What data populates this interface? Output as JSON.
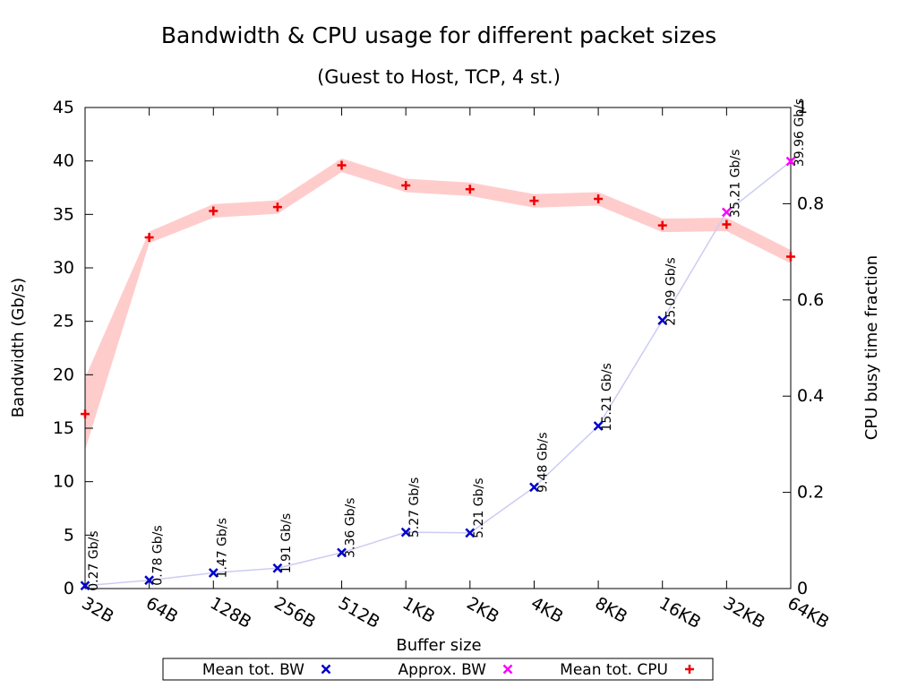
{
  "chart_data": {
    "type": "line",
    "title": "Bandwidth & CPU usage for different packet sizes",
    "subtitle": "(Guest to Host, TCP, 4 st.)",
    "xlabel": "Buffer size",
    "ylabel": "Bandwidth (Gb/s)",
    "y2label": "CPU busy time fraction",
    "categories": [
      "32B",
      "64B",
      "128B",
      "256B",
      "512B",
      "1KB",
      "2KB",
      "4KB",
      "8KB",
      "16KB",
      "32KB",
      "64KB"
    ],
    "ylim": [
      0,
      45
    ],
    "yticks": [
      0,
      5,
      10,
      15,
      20,
      25,
      30,
      35,
      40,
      45
    ],
    "y2lim": [
      0,
      1
    ],
    "y2ticks": [
      "0",
      "0.2",
      "0.4",
      "0.6",
      "0.8",
      "1"
    ],
    "grid": false,
    "legend_position": "bottom",
    "series": [
      {
        "name": "Mean tot. BW",
        "axis": "left",
        "color": "#0000cc",
        "marker": "x",
        "values": [
          0.27,
          0.78,
          1.47,
          1.91,
          3.36,
          5.27,
          5.21,
          9.48,
          15.21,
          25.09,
          null,
          null
        ],
        "labels": [
          "0.27 Gb/s",
          "0.78 Gb/s",
          "1.47 Gb/s",
          "1.91 Gb/s",
          "3.36 Gb/s",
          "5.27 Gb/s",
          "5.21 Gb/s",
          "9.48 Gb/s",
          "15.21 Gb/s",
          "25.09 Gb/s",
          "",
          ""
        ]
      },
      {
        "name": "Approx. BW",
        "axis": "left",
        "color": "#ff00ff",
        "marker": "x",
        "values": [
          null,
          null,
          null,
          null,
          null,
          null,
          null,
          null,
          null,
          null,
          35.21,
          39.96
        ],
        "labels": [
          "",
          "",
          "",
          "",
          "",
          "",
          "",
          "",
          "",
          "",
          "35.21 Gb/s",
          "39.96 Gb/s"
        ]
      },
      {
        "name": "Mean tot. CPU",
        "axis": "right",
        "color": "#ee0000",
        "band_color": "#ffcccc",
        "marker": "+",
        "values": [
          0.363,
          0.73,
          0.785,
          0.793,
          0.88,
          0.838,
          0.83,
          0.806,
          0.81,
          0.755,
          0.757,
          0.69
        ],
        "band_halfwidth": [
          0.075,
          0.012,
          0.014,
          0.014,
          0.014,
          0.014,
          0.014,
          0.014,
          0.014,
          0.014,
          0.014,
          0.014
        ]
      }
    ],
    "bw_line_color": "#ccccf2"
  }
}
